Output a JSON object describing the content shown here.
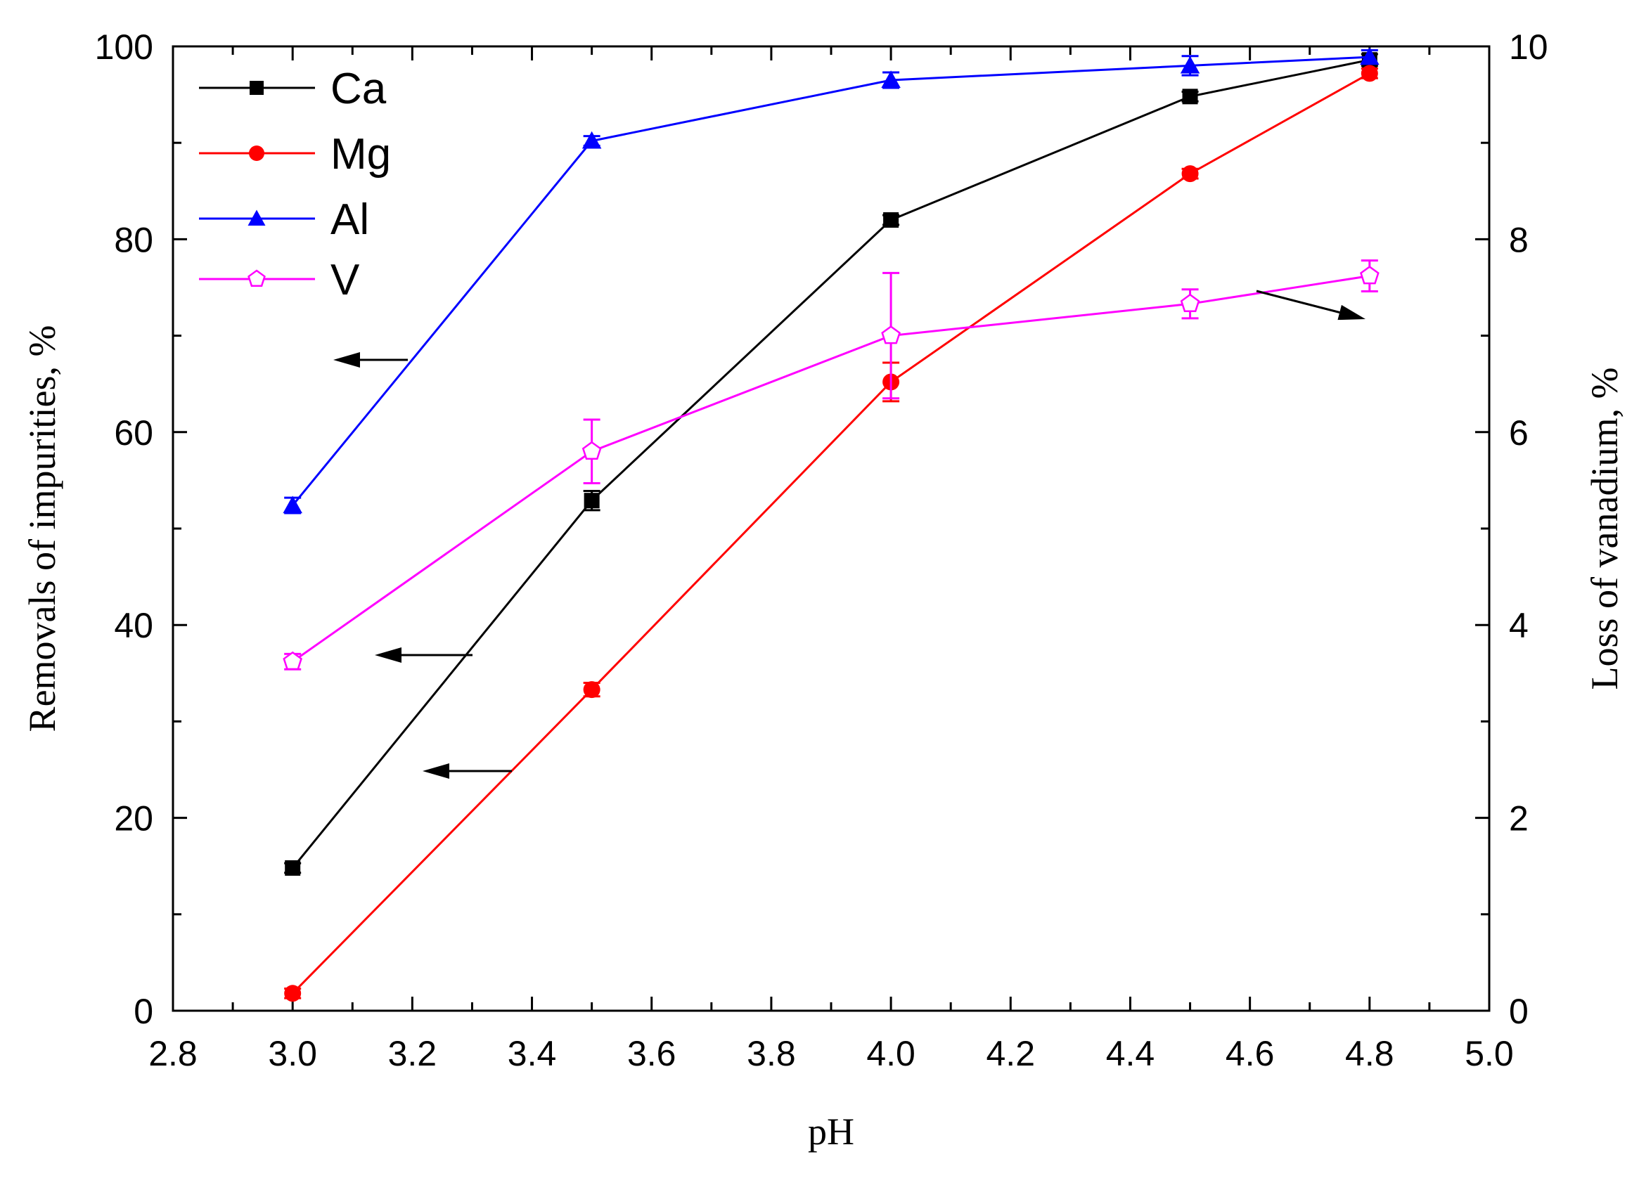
{
  "chart_data": {
    "type": "line",
    "xlabel": "pH",
    "ylabel_left": "Removals of impurities, %",
    "ylabel_right": "Loss of vanadium, %",
    "xlim": [
      2.8,
      5.0
    ],
    "ylim_left": [
      0,
      100
    ],
    "ylim_right": [
      0,
      10
    ],
    "x_ticks": [
      "2.8",
      "3.0",
      "3.2",
      "3.4",
      "3.6",
      "3.8",
      "4.0",
      "4.2",
      "4.4",
      "4.6",
      "4.8",
      "5.0"
    ],
    "x_tick_values": [
      2.8,
      3.0,
      3.2,
      3.4,
      3.6,
      3.8,
      4.0,
      4.2,
      4.4,
      4.6,
      4.8,
      5.0
    ],
    "y_ticks_left": [
      "0",
      "20",
      "40",
      "60",
      "80",
      "100"
    ],
    "y_tick_values_left": [
      0,
      20,
      40,
      60,
      80,
      100
    ],
    "y_ticks_right": [
      "0",
      "2",
      "4",
      "6",
      "8",
      "10"
    ],
    "y_tick_values_right": [
      0,
      2,
      4,
      6,
      8,
      10
    ],
    "legend_position": "top-left",
    "series": [
      {
        "name": "Ca",
        "axis": "left",
        "color": "#000000",
        "marker": "square",
        "x": [
          3.0,
          3.5,
          4.0,
          4.5,
          4.8
        ],
        "y": [
          14.8,
          52.9,
          82.0,
          94.8,
          98.6
        ],
        "err": [
          0.5,
          1.0,
          0.5,
          0.5,
          0.6
        ]
      },
      {
        "name": "Mg",
        "axis": "left",
        "color": "#ff0000",
        "marker": "circle",
        "x": [
          3.0,
          3.5,
          4.0,
          4.5,
          4.8
        ],
        "y": [
          1.8,
          33.3,
          65.2,
          86.8,
          97.2
        ],
        "err": [
          0.5,
          0.7,
          2.0,
          0.5,
          0.5
        ]
      },
      {
        "name": "Al",
        "axis": "left",
        "color": "#0000ff",
        "marker": "triangle",
        "x": [
          3.0,
          3.5,
          4.0,
          4.5,
          4.8
        ],
        "y": [
          52.4,
          90.2,
          96.5,
          98.0,
          98.9
        ],
        "err": [
          0.8,
          0.5,
          0.8,
          1.0,
          0.7
        ]
      },
      {
        "name": "V",
        "axis": "right",
        "color": "#ff00ff",
        "marker": "pentagon-open",
        "x": [
          3.0,
          3.5,
          4.0,
          4.5,
          4.8
        ],
        "y": [
          3.62,
          5.8,
          7.0,
          7.33,
          7.62
        ],
        "err": [
          0.08,
          0.33,
          0.65,
          0.15,
          0.16
        ]
      }
    ],
    "annotations": [
      {
        "label": "arrow-left-al",
        "text": "",
        "points_to": "left axis",
        "series": "Al"
      },
      {
        "label": "arrow-left-ca",
        "text": "",
        "points_to": "left axis",
        "series": "Ca"
      },
      {
        "label": "arrow-left-mg",
        "text": "",
        "points_to": "left axis",
        "series": "Mg"
      },
      {
        "label": "arrow-right-v",
        "text": "",
        "points_to": "right axis",
        "series": "V"
      }
    ]
  }
}
